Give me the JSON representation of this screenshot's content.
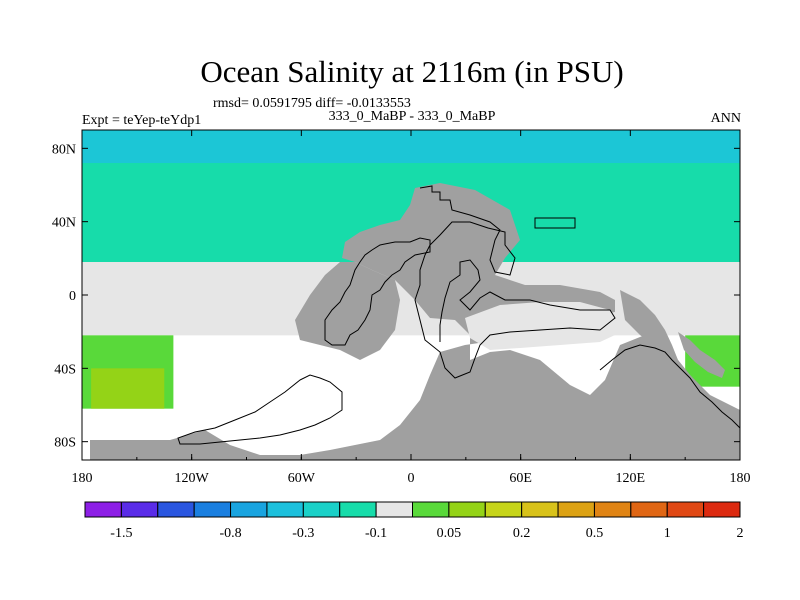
{
  "chart_data": {
    "type": "heatmap",
    "title": "Ocean Salinity at 2116m (in PSU)",
    "stats_line": "rmsd= 0.0591795 diff= -0.0133553",
    "subtitle": "333_0_MaBP - 333_0_MaBP",
    "left_label": "Expt = teYep-teYdp1",
    "right_label": "ANN",
    "xlim": [
      -180,
      180
    ],
    "ylim": [
      -90,
      90
    ],
    "x_ticks": [
      {
        "value": -180,
        "label": "180"
      },
      {
        "value": -120,
        "label": "120W"
      },
      {
        "value": -60,
        "label": "60W"
      },
      {
        "value": 0,
        "label": "0"
      },
      {
        "value": 60,
        "label": "60E"
      },
      {
        "value": 120,
        "label": "120E"
      },
      {
        "value": 180,
        "label": "180"
      }
    ],
    "y_ticks": [
      {
        "value": 80,
        "label": "80N"
      },
      {
        "value": 40,
        "label": "40N"
      },
      {
        "value": 0,
        "label": "0"
      },
      {
        "value": -40,
        "label": "40S"
      },
      {
        "value": -80,
        "label": "80S"
      }
    ],
    "colorbar": {
      "colors": [
        "#8d1fe6",
        "#5a2ce8",
        "#2a56e0",
        "#1a7fe0",
        "#19a4e0",
        "#1cc0dc",
        "#1bd1c8",
        "#17dcaa",
        "#e6e6e6",
        "#59d93a",
        "#94d317",
        "#c6d41a",
        "#d8c21a",
        "#dca214",
        "#e08414",
        "#e06614",
        "#e04814",
        "#dc2a10"
      ],
      "labels": [
        {
          "after_index": 1,
          "text": "-1.5"
        },
        {
          "after_index": 4,
          "text": "-0.8"
        },
        {
          "after_index": 6,
          "text": "-0.3"
        },
        {
          "after_index": 8,
          "text": "-0.1"
        },
        {
          "after_index": 10,
          "text": "0.05"
        },
        {
          "after_index": 12,
          "text": "0.2"
        },
        {
          "after_index": 14,
          "text": "0.5"
        },
        {
          "after_index": 16,
          "text": "1"
        },
        {
          "after_index": 18,
          "text": "2"
        }
      ]
    },
    "land_color": "#a0a0a0",
    "regions": [
      {
        "name": "arctic-band",
        "color": "#1cc6d6",
        "lon": [
          -180,
          180
        ],
        "lat": [
          72,
          90
        ]
      },
      {
        "name": "north-positive",
        "color": "#17dcaa",
        "lon": [
          -180,
          180
        ],
        "lat": [
          18,
          72
        ]
      },
      {
        "name": "tropical-zero",
        "color": "#e6e6e6",
        "lon": [
          -180,
          180
        ],
        "lat": [
          -22,
          18
        ]
      },
      {
        "name": "south-west-green",
        "color": "#59d93a",
        "lon": [
          -180,
          -130
        ],
        "lat": [
          -62,
          -22
        ]
      },
      {
        "name": "south-west-yellow",
        "color": "#94d317",
        "lon": [
          -175,
          -135
        ],
        "lat": [
          -62,
          -40
        ]
      },
      {
        "name": "south-east-green",
        "color": "#59d93a",
        "lon": [
          150,
          180
        ],
        "lat": [
          -50,
          -22
        ]
      }
    ]
  }
}
